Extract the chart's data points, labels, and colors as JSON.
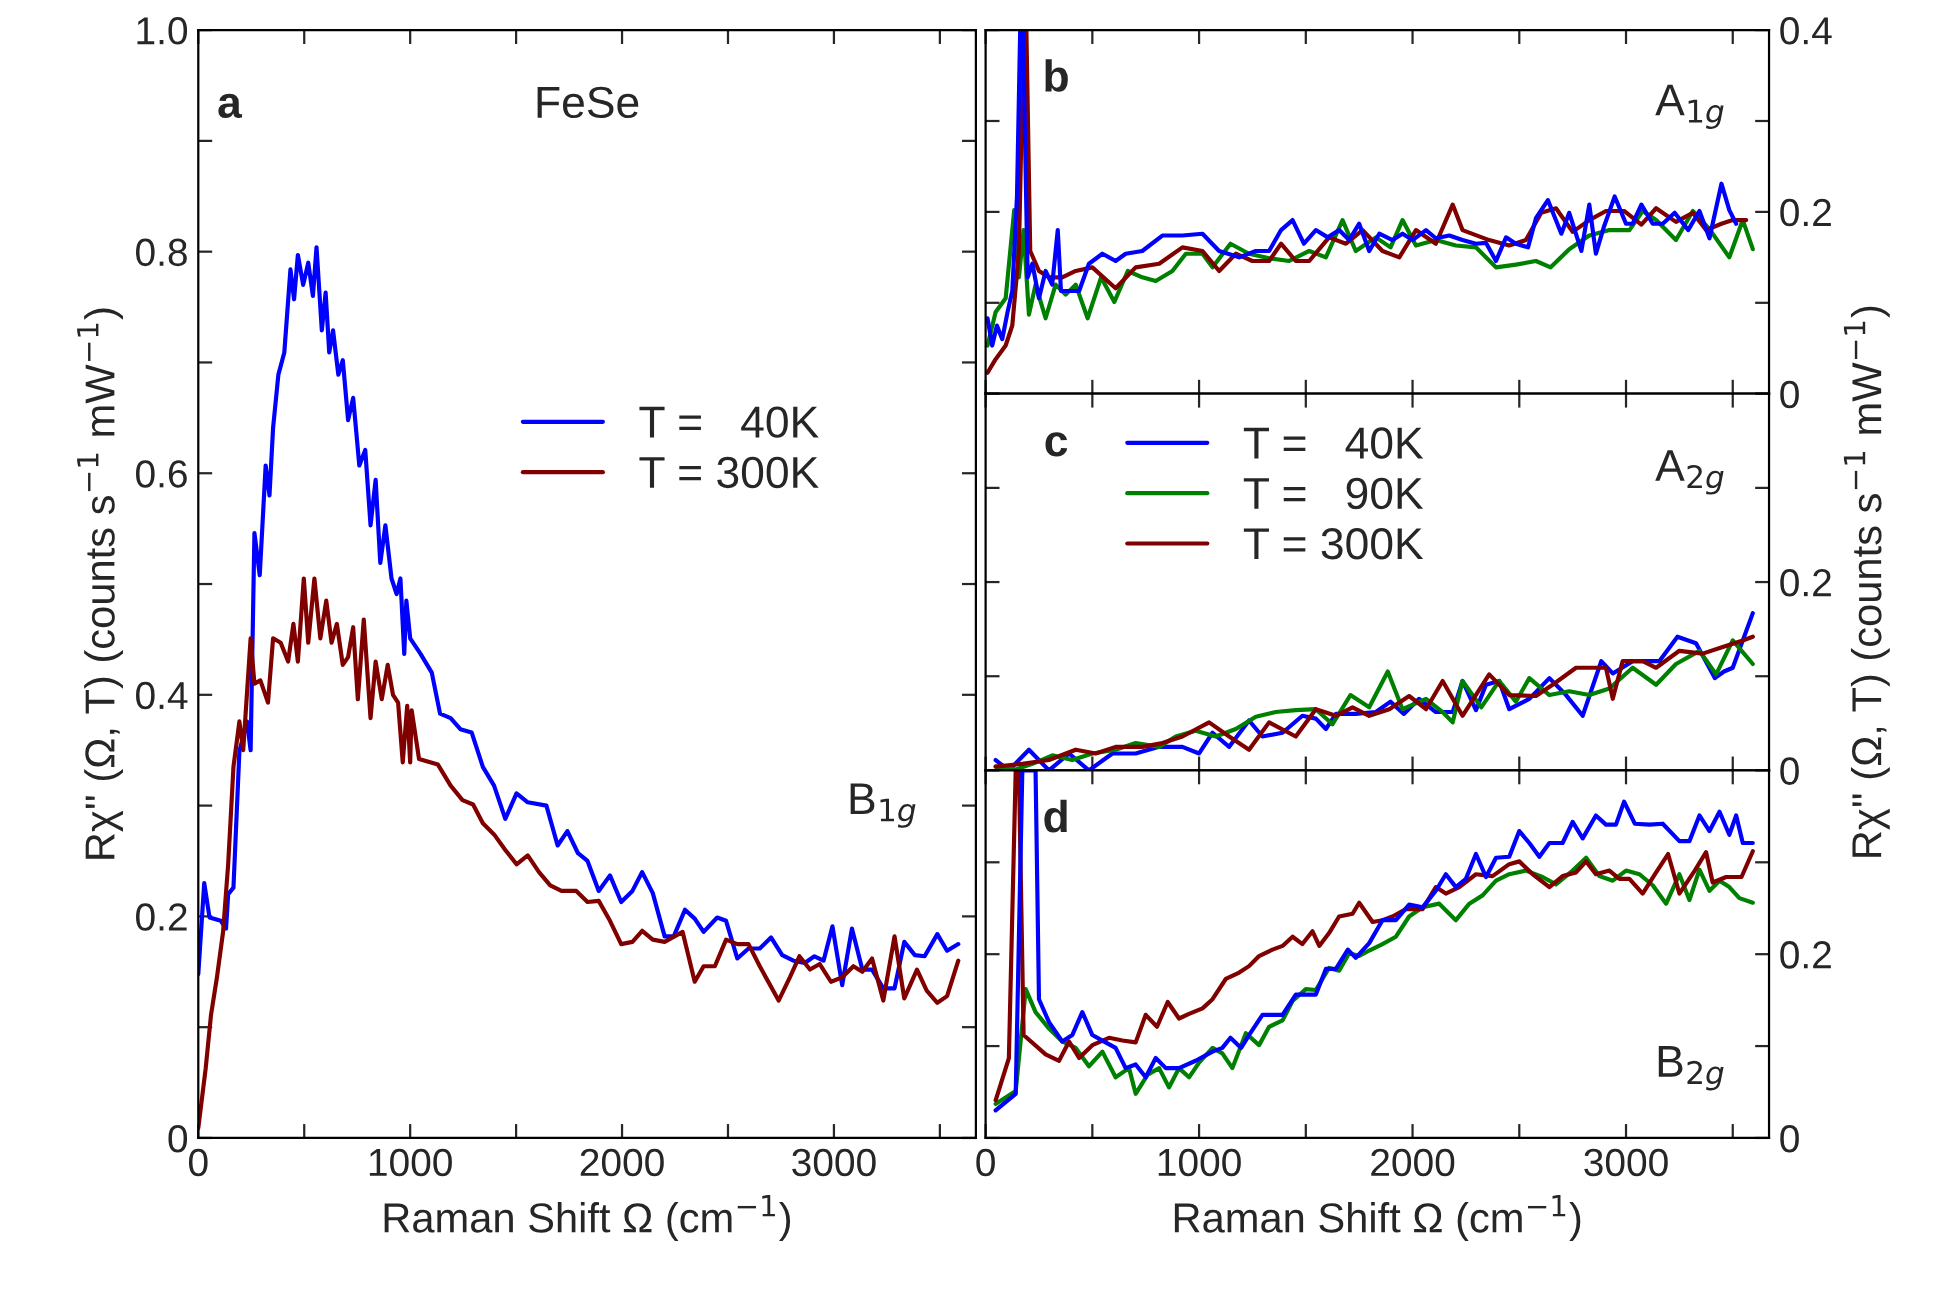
{
  "chart_data": [
    {
      "type": "line",
      "xlabel": "Raman Shift Ω (cm$^{−1}$)",
      "ylabel": "Rχ'' (Ω, T) (counts s$^{−1}$ mW$^{−1}$)",
      "annotations": [
        "a",
        "FeSe",
        "B$_{1g}$"
      ],
      "legend": "right",
      "xlim": [
        0,
        3670
      ],
      "xticks": [
        0,
        {
          "value": 500,
          "label": null
        },
        1000,
        {
          "value": 1500,
          "label": null
        },
        2000,
        {
          "value": 2500,
          "label": null
        },
        3000,
        {
          "value": 3500,
          "label": null
        }
      ],
      "ylim": [
        0,
        1
      ],
      "yticks": [
        0,
        {
          "value": 0.1,
          "label": null
        },
        0.2,
        {
          "value": 0.3,
          "label": null
        },
        0.4,
        {
          "value": 0.5,
          "label": null
        },
        0.6,
        {
          "value": 0.7,
          "label": null
        },
        0.8,
        {
          "value": 0.9,
          "label": null
        },
        {
          "value": 1,
          "label": "1.0"
        }
      ],
      "series": [
        {
          "name": "T =   40K",
          "color": "#0000ff",
          "x": [
            0,
            28,
            53,
            106,
            131,
            141,
            166,
            194,
            230,
            247,
            265,
            290,
            318,
            336,
            353,
            378,
            406,
            435,
            452,
            470,
            495,
            519,
            541,
            558,
            583,
            601,
            618,
            636,
            661,
            682,
            707,
            731,
            760,
            788,
            813,
            837,
            859,
            883,
            912,
            936,
            954,
            972,
            982,
            1000,
            1049,
            1102,
            1141,
            1191,
            1237,
            1290,
            1343,
            1396,
            1449,
            1502,
            1555,
            1643,
            1696,
            1742,
            1792,
            1837,
            1890,
            1943,
            1996,
            2049,
            2095,
            2145,
            2201,
            2244,
            2297,
            2343,
            2385,
            2449,
            2491,
            2544,
            2597,
            2650,
            2703,
            2756,
            2809,
            2862,
            2908,
            2951,
            2993,
            3039,
            3085,
            3134,
            3180,
            3233,
            3286,
            3332,
            3382,
            3428,
            3488,
            3534,
            3587
          ],
          "values": [
            0.148,
            0.23,
            0.199,
            0.196,
            0.189,
            0.22,
            0.226,
            0.349,
            0.376,
            0.35,
            0.546,
            0.508,
            0.607,
            0.58,
            0.641,
            0.689,
            0.709,
            0.784,
            0.757,
            0.797,
            0.77,
            0.79,
            0.76,
            0.804,
            0.729,
            0.763,
            0.709,
            0.729,
            0.689,
            0.702,
            0.648,
            0.668,
            0.607,
            0.621,
            0.553,
            0.594,
            0.519,
            0.553,
            0.505,
            0.491,
            0.505,
            0.437,
            0.485,
            0.451,
            0.437,
            0.42,
            0.383,
            0.379,
            0.369,
            0.366,
            0.335,
            0.318,
            0.288,
            0.311,
            0.303,
            0.3,
            0.264,
            0.277,
            0.257,
            0.25,
            0.223,
            0.237,
            0.213,
            0.223,
            0.24,
            0.221,
            0.182,
            0.182,
            0.206,
            0.198,
            0.186,
            0.199,
            0.196,
            0.162,
            0.171,
            0.171,
            0.181,
            0.165,
            0.16,
            0.158,
            0.164,
            0.16,
            0.191,
            0.138,
            0.189,
            0.152,
            0.152,
            0.135,
            0.135,
            0.177,
            0.165,
            0.164,
            0.184,
            0.169,
            0.175
          ]
        },
        {
          "name": "T = 300K",
          "color": "#800000",
          "x": [
            0,
            35,
            60,
            88,
            117,
            141,
            166,
            194,
            212,
            247,
            265,
            293,
            329,
            353,
            389,
            424,
            449,
            470,
            498,
            519,
            548,
            576,
            604,
            629,
            654,
            682,
            707,
            731,
            753,
            781,
            813,
            837,
            866,
            894,
            919,
            943,
            965,
            986,
            1000,
            1007,
            1042,
            1131,
            1191,
            1247,
            1297,
            1343,
            1396,
            1449,
            1502,
            1555,
            1608,
            1661,
            1714,
            1784,
            1837,
            1890,
            1943,
            1996,
            2049,
            2095,
            2145,
            2201,
            2286,
            2343,
            2385,
            2438,
            2491,
            2544,
            2597,
            2650,
            2739,
            2792,
            2837,
            2887,
            2933,
            2986,
            3039,
            3092,
            3134,
            3180,
            3233,
            3286,
            3332,
            3392,
            3438,
            3488,
            3534,
            3587
          ],
          "values": [
            0.009,
            0.063,
            0.111,
            0.145,
            0.186,
            0.247,
            0.335,
            0.376,
            0.35,
            0.451,
            0.41,
            0.413,
            0.393,
            0.451,
            0.447,
            0.43,
            0.464,
            0.43,
            0.505,
            0.447,
            0.505,
            0.451,
            0.485,
            0.447,
            0.464,
            0.427,
            0.434,
            0.461,
            0.396,
            0.468,
            0.379,
            0.43,
            0.396,
            0.427,
            0.4,
            0.393,
            0.339,
            0.39,
            0.339,
            0.386,
            0.342,
            0.337,
            0.318,
            0.305,
            0.301,
            0.284,
            0.274,
            0.26,
            0.247,
            0.255,
            0.24,
            0.228,
            0.223,
            0.223,
            0.213,
            0.214,
            0.196,
            0.175,
            0.177,
            0.187,
            0.179,
            0.177,
            0.186,
            0.141,
            0.155,
            0.155,
            0.179,
            0.175,
            0.175,
            0.155,
            0.124,
            0.145,
            0.164,
            0.152,
            0.157,
            0.141,
            0.145,
            0.155,
            0.15,
            0.162,
            0.124,
            0.182,
            0.126,
            0.152,
            0.133,
            0.122,
            0.128,
            0.16
          ]
        }
      ]
    },
    {
      "type": "line",
      "annotations": [
        "b",
        "A$_{1g}$"
      ],
      "tick_labels": "y",
      "xlim": [
        0,
        3670
      ],
      "xticks": [
        0,
        {
          "value": 500,
          "label": null
        },
        1000,
        {
          "value": 1500,
          "label": null
        },
        2000,
        {
          "value": 2500,
          "label": null
        },
        3000,
        {
          "value": 3500,
          "label": null
        }
      ],
      "ylim": [
        0,
        0.4
      ],
      "yticks": [
        0,
        {
          "value": 0.1,
          "label": null
        },
        0.2,
        {
          "value": 0.3,
          "label": null
        },
        0.4
      ],
      "series": [
        {
          "color": "#008000",
          "x": [
            9,
            47,
            94,
            134,
            156,
            178,
            203,
            234,
            281,
            328,
            375,
            422,
            478,
            541,
            603,
            666,
            734,
            797,
            875,
            938,
            1016,
            1063,
            1147,
            1234,
            1328,
            1422,
            1516,
            1594,
            1672,
            1734,
            1828,
            1897,
            1953,
            2016,
            2109,
            2203,
            2297,
            2391,
            2484,
            2578,
            2647,
            2734,
            2828,
            2922,
            3016,
            3078,
            3141,
            3234,
            3313,
            3391,
            3484,
            3547,
            3594
          ],
          "values": [
            0.053,
            0.09,
            0.105,
            0.202,
            0.128,
            0.18,
            0.087,
            0.12,
            0.083,
            0.12,
            0.109,
            0.12,
            0.083,
            0.128,
            0.101,
            0.135,
            0.128,
            0.124,
            0.135,
            0.154,
            0.154,
            0.139,
            0.165,
            0.154,
            0.149,
            0.146,
            0.157,
            0.15,
            0.191,
            0.157,
            0.172,
            0.161,
            0.191,
            0.163,
            0.169,
            0.163,
            0.161,
            0.139,
            0.142,
            0.146,
            0.139,
            0.159,
            0.174,
            0.18,
            0.18,
            0.201,
            0.191,
            0.169,
            0.201,
            0.181,
            0.15,
            0.191,
            0.159
          ]
        },
        {
          "color": "#800000",
          "x": [
            9,
            47,
            94,
            125,
            156,
            178,
            191,
            209,
            250,
            297,
            359,
            422,
            500,
            609,
            703,
            813,
            922,
            1016,
            1094,
            1172,
            1250,
            1328,
            1384,
            1453,
            1516,
            1609,
            1688,
            1766,
            1859,
            1938,
            2016,
            2109,
            2188,
            2234,
            2359,
            2453,
            2531,
            2603,
            2672,
            2750,
            2828,
            2906,
            2991,
            3072,
            3141,
            3234,
            3313,
            3375,
            3447,
            3500,
            3563
          ],
          "values": [
            0.023,
            0.038,
            0.053,
            0.075,
            0.157,
            0.4,
            0.4,
            0.157,
            0.135,
            0.128,
            0.128,
            0.135,
            0.139,
            0.116,
            0.139,
            0.143,
            0.161,
            0.157,
            0.135,
            0.154,
            0.146,
            0.146,
            0.165,
            0.146,
            0.146,
            0.172,
            0.165,
            0.18,
            0.157,
            0.15,
            0.18,
            0.165,
            0.208,
            0.18,
            0.169,
            0.163,
            0.169,
            0.199,
            0.204,
            0.178,
            0.191,
            0.201,
            0.201,
            0.186,
            0.204,
            0.189,
            0.199,
            0.18,
            0.187,
            0.191,
            0.191
          ]
        },
        {
          "color": "#0000ff",
          "x": [
            9,
            31,
            53,
            78,
            103,
            125,
            147,
            162,
            175,
            197,
            219,
            250,
            281,
            312,
            338,
            353,
            391,
            438,
            484,
            547,
            609,
            656,
            734,
            828,
            922,
            1016,
            1094,
            1188,
            1266,
            1328,
            1384,
            1438,
            1491,
            1547,
            1603,
            1656,
            1703,
            1750,
            1797,
            1844,
            1906,
            1953,
            2000,
            2063,
            2109,
            2172,
            2234,
            2297,
            2344,
            2391,
            2438,
            2484,
            2541,
            2578,
            2634,
            2697,
            2734,
            2791,
            2828,
            2859,
            2897,
            2947,
            3000,
            3031,
            3072,
            3125,
            3172,
            3228,
            3291,
            3344,
            3391,
            3447,
            3484,
            3516
          ],
          "values": [
            0.083,
            0.053,
            0.075,
            0.06,
            0.09,
            0.113,
            0.217,
            0.4,
            0.4,
            0.128,
            0.143,
            0.105,
            0.135,
            0.12,
            0.18,
            0.113,
            0.113,
            0.113,
            0.143,
            0.154,
            0.146,
            0.154,
            0.157,
            0.174,
            0.174,
            0.176,
            0.157,
            0.15,
            0.157,
            0.157,
            0.18,
            0.191,
            0.165,
            0.18,
            0.172,
            0.18,
            0.169,
            0.187,
            0.157,
            0.176,
            0.169,
            0.176,
            0.169,
            0.18,
            0.171,
            0.174,
            0.169,
            0.165,
            0.166,
            0.146,
            0.172,
            0.165,
            0.161,
            0.193,
            0.213,
            0.176,
            0.199,
            0.157,
            0.208,
            0.154,
            0.184,
            0.217,
            0.187,
            0.187,
            0.208,
            0.187,
            0.187,
            0.199,
            0.18,
            0.201,
            0.171,
            0.231,
            0.202,
            0.187
          ]
        }
      ]
    },
    {
      "type": "line",
      "annotations": [
        "c",
        "A$_{2g}$"
      ],
      "tick_labels": "y",
      "legend": "top",
      "ylabel": "Rχ'' (Ω, T) (counts s$^{−1}$ mW$^{−1}$)",
      "xlim": [
        0,
        3670
      ],
      "xticks": [
        0,
        {
          "value": 500,
          "label": null
        },
        1000,
        {
          "value": 1500,
          "label": null
        },
        2000,
        {
          "value": 2500,
          "label": null
        },
        3000,
        {
          "value": 3500,
          "label": null
        }
      ],
      "ylim": [
        0,
        0.4
      ],
      "yticks": [
        0,
        {
          "value": 0.1,
          "label": null
        },
        0.2,
        {
          "value": 0.3,
          "label": null
        },
        {
          "value": 0.4,
          "label": null
        }
      ],
      "series": [
        {
          "name": "T =   40K",
          "color": "#0000ff",
          "x": [
            47,
            109,
            203,
            297,
            391,
            484,
            594,
            703,
            813,
            922,
            1000,
            1063,
            1141,
            1234,
            1297,
            1391,
            1484,
            1547,
            1594,
            1641,
            1734,
            1828,
            1897,
            1959,
            2031,
            2109,
            2188,
            2234,
            2297,
            2344,
            2406,
            2453,
            2547,
            2641,
            2719,
            2797,
            2884,
            2938,
            3031,
            3156,
            3241,
            3328,
            3416,
            3459,
            3500,
            3594
          ],
          "values": [
            0.011,
            0,
            0.022,
            0,
            0.018,
            0,
            0.018,
            0.018,
            0.025,
            0.025,
            0.018,
            0.04,
            0.025,
            0.053,
            0.036,
            0.04,
            0.058,
            0.055,
            0.044,
            0.06,
            0.06,
            0.062,
            0.073,
            0.06,
            0.076,
            0.062,
            0.062,
            0.095,
            0.064,
            0.091,
            0.095,
            0.065,
            0.076,
            0.098,
            0.08,
            0.058,
            0.116,
            0.103,
            0.116,
            0.116,
            0.142,
            0.135,
            0.098,
            0.105,
            0.109,
            0.167
          ]
        },
        {
          "name": "T =   90K",
          "color": "#008000",
          "x": [
            47,
            141,
            219,
            313,
            406,
            500,
            609,
            703,
            813,
            891,
            984,
            1078,
            1172,
            1266,
            1359,
            1453,
            1547,
            1625,
            1709,
            1797,
            1884,
            1953,
            2063,
            2141,
            2188,
            2234,
            2322,
            2406,
            2484,
            2547,
            2641,
            2734,
            2828,
            2922,
            3031,
            3141,
            3234,
            3344,
            3422,
            3500,
            3594
          ],
          "values": [
            0.004,
            0.001,
            0.007,
            0.016,
            0.011,
            0.018,
            0.022,
            0.029,
            0.025,
            0.036,
            0.042,
            0.036,
            0.044,
            0.057,
            0.062,
            0.064,
            0.065,
            0.049,
            0.08,
            0.067,
            0.105,
            0.065,
            0.076,
            0.062,
            0.051,
            0.095,
            0.067,
            0.095,
            0.073,
            0.098,
            0.08,
            0.084,
            0.08,
            0.087,
            0.109,
            0.091,
            0.113,
            0.127,
            0.102,
            0.138,
            0.113
          ]
        },
        {
          "name": "T = 300K",
          "color": "#800000",
          "x": [
            47,
            172,
            297,
            422,
            516,
            609,
            734,
            828,
            922,
            1047,
            1141,
            1234,
            1328,
            1453,
            1547,
            1641,
            1719,
            1797,
            1891,
            1984,
            2063,
            2141,
            2234,
            2359,
            2453,
            2578,
            2656,
            2766,
            2906,
            2938,
            2984,
            3078,
            3141,
            3250,
            3359,
            3453,
            3547,
            3594
          ],
          "values": [
            0.004,
            0.007,
            0.011,
            0.022,
            0.018,
            0.025,
            0.025,
            0.029,
            0.036,
            0.051,
            0.036,
            0.022,
            0.051,
            0.036,
            0.065,
            0.058,
            0.067,
            0.058,
            0.065,
            0.079,
            0.065,
            0.095,
            0.058,
            0.102,
            0.08,
            0.079,
            0.091,
            0.109,
            0.109,
            0.076,
            0.116,
            0.116,
            0.109,
            0.127,
            0.124,
            0.131,
            0.138,
            0.142
          ]
        }
      ]
    },
    {
      "type": "line",
      "annotations": [
        "d",
        "B$_{2g}$"
      ],
      "xlabel": "Raman Shift Ω (cm$^{−1}$)",
      "xlim": [
        0,
        3670
      ],
      "xticks": [
        0,
        {
          "value": 500,
          "label": null
        },
        1000,
        {
          "value": 1500,
          "label": null
        },
        2000,
        {
          "value": 2500,
          "label": null
        },
        3000,
        {
          "value": 3500,
          "label": null
        }
      ],
      "ylim": [
        0,
        0.4
      ],
      "yticks": [
        0,
        {
          "value": 0.1,
          "label": null
        },
        0.2,
        {
          "value": 0.3,
          "label": null
        },
        {
          "value": 0.4,
          "label": null
        }
      ],
      "series": [
        {
          "color": "#008000",
          "x": [
            47,
            141,
            188,
            234,
            297,
            359,
            422,
            484,
            547,
            609,
            672,
            703,
            759,
            813,
            859,
            906,
            953,
            1000,
            1063,
            1109,
            1156,
            1219,
            1281,
            1328,
            1391,
            1438,
            1500,
            1547,
            1609,
            1656,
            1703,
            1750,
            1797,
            1859,
            1922,
            1984,
            2047,
            2125,
            2203,
            2266,
            2328,
            2391,
            2453,
            2531,
            2609,
            2672,
            2750,
            2813,
            2875,
            2938,
            3000,
            3063,
            3125,
            3188,
            3250,
            3297,
            3344,
            3391,
            3438,
            3484,
            3531,
            3594
          ],
          "values": [
            0.037,
            0.051,
            0.162,
            0.137,
            0.119,
            0.105,
            0.098,
            0.078,
            0.094,
            0.066,
            0.076,
            0.048,
            0.069,
            0.076,
            0.055,
            0.076,
            0.066,
            0.082,
            0.098,
            0.092,
            0.076,
            0.114,
            0.101,
            0.121,
            0.128,
            0.149,
            0.162,
            0.161,
            0.185,
            0.182,
            0.201,
            0.198,
            0.204,
            0.211,
            0.219,
            0.241,
            0.251,
            0.255,
            0.237,
            0.255,
            0.264,
            0.28,
            0.287,
            0.291,
            0.284,
            0.276,
            0.291,
            0.305,
            0.285,
            0.28,
            0.291,
            0.287,
            0.275,
            0.255,
            0.287,
            0.259,
            0.292,
            0.269,
            0.28,
            0.273,
            0.261,
            0.256
          ]
        },
        {
          "color": "#800000",
          "x": [
            47,
            109,
            141,
            156,
            178,
            281,
            344,
            391,
            438,
            500,
            578,
            641,
            703,
            750,
            803,
            853,
            906,
            953,
            1016,
            1063,
            1125,
            1188,
            1234,
            1281,
            1344,
            1391,
            1438,
            1484,
            1531,
            1563,
            1609,
            1656,
            1719,
            1750,
            1813,
            1859,
            1906,
            1969,
            2047,
            2109,
            2156,
            2219,
            2297,
            2375,
            2453,
            2500,
            2563,
            2641,
            2703,
            2766,
            2813,
            2859,
            2922,
            2969,
            3016,
            3078,
            3141,
            3197,
            3250,
            3322,
            3375,
            3406,
            3469,
            3541,
            3594
          ],
          "values": [
            0.041,
            0.087,
            0.4,
            0.4,
            0.112,
            0.091,
            0.084,
            0.105,
            0.087,
            0.101,
            0.109,
            0.106,
            0.104,
            0.134,
            0.121,
            0.148,
            0.13,
            0.135,
            0.141,
            0.151,
            0.173,
            0.18,
            0.187,
            0.198,
            0.205,
            0.209,
            0.219,
            0.211,
            0.225,
            0.209,
            0.223,
            0.241,
            0.244,
            0.256,
            0.235,
            0.237,
            0.241,
            0.249,
            0.249,
            0.273,
            0.266,
            0.273,
            0.287,
            0.285,
            0.298,
            0.301,
            0.287,
            0.273,
            0.285,
            0.289,
            0.301,
            0.287,
            0.291,
            0.282,
            0.282,
            0.266,
            0.289,
            0.309,
            0.266,
            0.291,
            0.311,
            0.278,
            0.284,
            0.284,
            0.312
          ]
        },
        {
          "color": "#0000ff",
          "x": [
            47,
            141,
            172,
            234,
            250,
            297,
            359,
            406,
            453,
            500,
            547,
            609,
            656,
            703,
            750,
            797,
            844,
            906,
            984,
            1063,
            1109,
            1147,
            1197,
            1234,
            1297,
            1391,
            1453,
            1547,
            1594,
            1641,
            1697,
            1734,
            1797,
            1859,
            1922,
            1984,
            2047,
            2109,
            2156,
            2203,
            2250,
            2297,
            2344,
            2391,
            2453,
            2500,
            2547,
            2594,
            2641,
            2703,
            2750,
            2797,
            2859,
            2906,
            2953,
            2991,
            3041,
            3109,
            3172,
            3250,
            3297,
            3344,
            3391,
            3438,
            3484,
            3516,
            3547,
            3594
          ],
          "values": [
            0.03,
            0.048,
            0.4,
            0.4,
            0.151,
            0.126,
            0.105,
            0.112,
            0.137,
            0.112,
            0.106,
            0.098,
            0.076,
            0.08,
            0.066,
            0.087,
            0.076,
            0.076,
            0.084,
            0.094,
            0.098,
            0.109,
            0.098,
            0.112,
            0.134,
            0.134,
            0.156,
            0.156,
            0.184,
            0.184,
            0.205,
            0.196,
            0.212,
            0.237,
            0.237,
            0.254,
            0.251,
            0.269,
            0.287,
            0.273,
            0.282,
            0.309,
            0.284,
            0.305,
            0.306,
            0.334,
            0.321,
            0.306,
            0.321,
            0.321,
            0.344,
            0.326,
            0.351,
            0.341,
            0.341,
            0.366,
            0.342,
            0.341,
            0.342,
            0.323,
            0.323,
            0.351,
            0.334,
            0.355,
            0.33,
            0.351,
            0.321,
            0.321
          ]
        }
      ]
    }
  ]
}
